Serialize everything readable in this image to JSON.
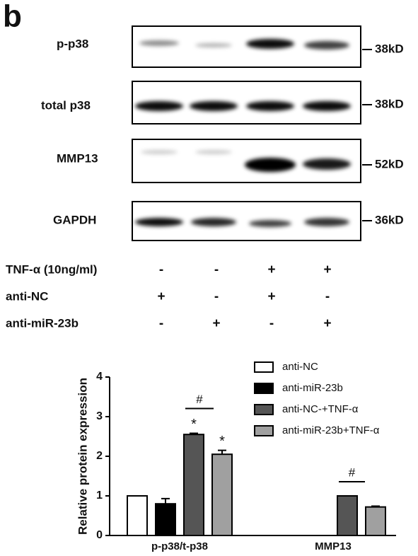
{
  "panel_label": "b",
  "blot": {
    "rows": [
      {
        "label": "p-p38",
        "size": "38kD"
      },
      {
        "label": "total p38",
        "size": "38kD"
      },
      {
        "label": "MMP13",
        "size": "52kD"
      },
      {
        "label": "GAPDH",
        "size": "36kD"
      }
    ]
  },
  "treatments": {
    "rows": [
      {
        "label": "TNF-α (10ng/ml)",
        "signs": [
          "-",
          "-",
          "+",
          "+"
        ]
      },
      {
        "label": "anti-NC",
        "signs": [
          "+",
          "-",
          "+",
          "-"
        ]
      },
      {
        "label": "anti-miR-23b",
        "signs": [
          "-",
          "+",
          "-",
          "+"
        ]
      }
    ]
  },
  "chart_data": {
    "type": "bar",
    "ylabel": "Relative  protein expression",
    "categories": [
      "p-p38/t-p38",
      "MMP13"
    ],
    "series": [
      {
        "name": "anti-NC",
        "color": "#ffffff",
        "values": [
          1.0,
          null
        ],
        "errors": [
          0,
          null
        ]
      },
      {
        "name": "anti-miR-23b",
        "color": "#000000",
        "values": [
          0.8,
          null
        ],
        "errors": [
          0.13,
          null
        ]
      },
      {
        "name": "anti-NC-+TNF-α",
        "color": "#555555",
        "values": [
          2.55,
          1.0
        ],
        "errors": [
          0.03,
          0
        ]
      },
      {
        "name": "anti-miR-23b+TNF-α",
        "color": "#a0a0a0",
        "values": [
          2.05,
          0.72
        ],
        "errors": [
          0.1,
          0.02
        ]
      }
    ],
    "ylim": [
      0,
      4
    ],
    "yticks": [
      0,
      1,
      2,
      3,
      4
    ],
    "annotations": {
      "stars": [
        "*",
        "*"
      ],
      "hashes": [
        "#",
        "#"
      ]
    }
  }
}
